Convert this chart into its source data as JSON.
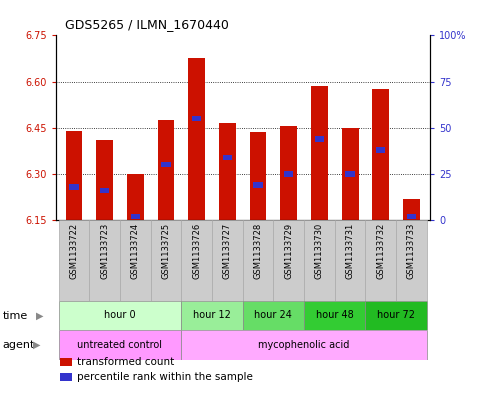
{
  "title": "GDS5265 / ILMN_1670440",
  "samples": [
    "GSM1133722",
    "GSM1133723",
    "GSM1133724",
    "GSM1133725",
    "GSM1133726",
    "GSM1133727",
    "GSM1133728",
    "GSM1133729",
    "GSM1133730",
    "GSM1133731",
    "GSM1133732",
    "GSM1133733"
  ],
  "bar_tops": [
    6.44,
    6.41,
    6.3,
    6.475,
    6.675,
    6.465,
    6.435,
    6.455,
    6.585,
    6.45,
    6.575,
    6.22
  ],
  "bar_bottom": 6.15,
  "percentile_values": [
    18,
    16,
    2,
    30,
    55,
    34,
    19,
    25,
    44,
    25,
    38,
    2
  ],
  "ylim": [
    6.15,
    6.75
  ],
  "y_ticks_left": [
    6.15,
    6.3,
    6.45,
    6.6,
    6.75
  ],
  "y_ticks_right_vals": [
    0,
    25,
    50,
    75,
    100
  ],
  "bar_color": "#cc1100",
  "blue_color": "#3333cc",
  "time_groups": [
    {
      "label": "hour 0",
      "start": 0,
      "end": 4,
      "color": "#ccffcc"
    },
    {
      "label": "hour 12",
      "start": 4,
      "end": 6,
      "color": "#99ee99"
    },
    {
      "label": "hour 24",
      "start": 6,
      "end": 8,
      "color": "#66dd66"
    },
    {
      "label": "hour 48",
      "start": 8,
      "end": 10,
      "color": "#33cc33"
    },
    {
      "label": "hour 72",
      "start": 10,
      "end": 12,
      "color": "#22bb22"
    }
  ],
  "agent_groups": [
    {
      "label": "untreated control",
      "start": 0,
      "end": 4,
      "color": "#ff99ff"
    },
    {
      "label": "mycophenolic acid",
      "start": 4,
      "end": 12,
      "color": "#ffaaff"
    }
  ],
  "ylabel_left_color": "#cc1100",
  "ylabel_right_color": "#3333cc",
  "bg_color": "#ffffff",
  "legend_items": [
    {
      "color": "#cc1100",
      "label": "transformed count"
    },
    {
      "color": "#3333cc",
      "label": "percentile rank within the sample"
    }
  ],
  "grid_yticks": [
    6.3,
    6.45,
    6.6
  ],
  "sample_box_color": "#cccccc",
  "sample_box_edge": "#aaaaaa"
}
